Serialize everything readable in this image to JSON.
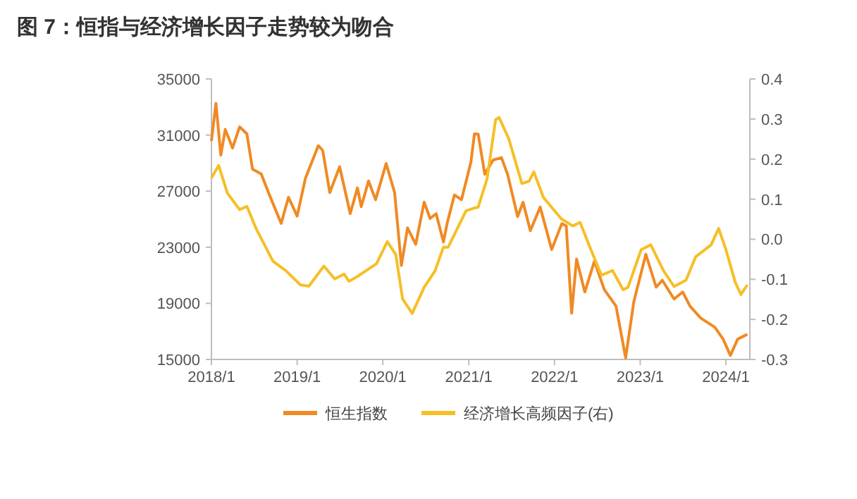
{
  "chart_data": {
    "type": "line",
    "title": "图 7：恒指与经济增长因子走势较为吻合",
    "legend": "bottom",
    "xlim": [
      "2018-01-01",
      "2024-04-12"
    ],
    "xticks": [
      {
        "value": "2018-01",
        "label": "2018/1"
      },
      {
        "value": "2019-01",
        "label": "2019/1"
      },
      {
        "value": "2020-01",
        "label": "2020/1"
      },
      {
        "value": "2021-01",
        "label": "2021/1"
      },
      {
        "value": "2022-01",
        "label": "2022/1"
      },
      {
        "value": "2023-01",
        "label": "2023/1"
      },
      {
        "value": "2024-01",
        "label": "2024/1"
      }
    ],
    "ylim": [
      15000,
      35000
    ],
    "yticks": [
      15000,
      19000,
      23000,
      27000,
      31000,
      35000
    ],
    "y2lim": [
      -0.3,
      0.4
    ],
    "y2ticks": [
      -0.3,
      -0.2,
      -0.1,
      {
        "value": 0,
        "label": "0.0"
      },
      0.1,
      0.2,
      0.3,
      0.4
    ],
    "series": [
      {
        "name": "恒生指数",
        "color": "#f08a24",
        "x": [
          "2018-01-01",
          "2018-01-20",
          "2018-02-10",
          "2018-03-01",
          "2018-04-01",
          "2018-05-01",
          "2018-06-01",
          "2018-06-25",
          "2018-08-01",
          "2018-09-01",
          "2018-10-25",
          "2018-11-25",
          "2019-01-01",
          "2019-02-05",
          "2019-04-01",
          "2019-04-20",
          "2019-05-20",
          "2019-07-01",
          "2019-08-15",
          "2019-09-15",
          "2019-10-01",
          "2019-11-01",
          "2019-12-01",
          "2020-01-15",
          "2020-02-20",
          "2020-03-20",
          "2020-04-15",
          "2020-05-20",
          "2020-06-25",
          "2020-07-20",
          "2020-08-15",
          "2020-09-15",
          "2020-10-01",
          "2020-11-01",
          "2020-12-01",
          "2021-01-10",
          "2021-01-25",
          "2021-02-10",
          "2021-03-10",
          "2021-04-15",
          "2021-05-20",
          "2021-06-15",
          "2021-07-28",
          "2021-08-20",
          "2021-09-20",
          "2021-11-01",
          "2021-12-20",
          "2022-02-01",
          "2022-02-20",
          "2022-03-15",
          "2022-04-05",
          "2022-05-10",
          "2022-06-20",
          "2022-08-01",
          "2022-09-20",
          "2022-10-31",
          "2022-12-05",
          "2023-01-25",
          "2023-03-10",
          "2023-04-05",
          "2023-05-25",
          "2023-07-01",
          "2023-08-01",
          "2023-09-15",
          "2023-11-15",
          "2023-12-20",
          "2024-01-20",
          "2024-02-20",
          "2024-04-01"
        ],
        "values": [
          30580,
          33260,
          29570,
          31400,
          30080,
          31580,
          31080,
          28570,
          28230,
          26900,
          24700,
          26560,
          25220,
          27900,
          30240,
          29900,
          26900,
          28740,
          25400,
          27230,
          25890,
          27730,
          26390,
          28970,
          26900,
          21700,
          24380,
          23210,
          26220,
          25050,
          25390,
          23380,
          24720,
          26730,
          26390,
          29070,
          31080,
          31070,
          28210,
          29220,
          29390,
          28210,
          25190,
          26200,
          24180,
          25860,
          22840,
          24680,
          24520,
          18300,
          22160,
          19810,
          22000,
          19980,
          18800,
          15110,
          19140,
          22500,
          20150,
          20650,
          19310,
          19810,
          18800,
          17960,
          17290,
          16450,
          15280,
          16450,
          16790
        ]
      },
      {
        "name": "经济增长高频因子(右)",
        "color": "#f6bf26",
        "axis": "y2",
        "x": [
          "2018-01-01",
          "2018-02-01",
          "2018-03-10",
          "2018-05-01",
          "2018-06-01",
          "2018-07-10",
          "2018-09-20",
          "2018-11-15",
          "2019-01-15",
          "2019-02-20",
          "2019-04-25",
          "2019-06-10",
          "2019-07-20",
          "2019-08-10",
          "2019-09-20",
          "2019-12-05",
          "2020-01-20",
          "2020-02-25",
          "2020-03-25",
          "2020-05-05",
          "2020-06-25",
          "2020-08-10",
          "2020-09-15",
          "2020-10-05",
          "2020-12-20",
          "2021-01-25",
          "2021-02-10",
          "2021-03-20",
          "2021-04-25",
          "2021-05-10",
          "2021-06-20",
          "2021-08-15",
          "2021-09-15",
          "2021-10-05",
          "2021-11-15",
          "2022-01-30",
          "2022-03-20",
          "2022-04-20",
          "2022-06-05",
          "2022-07-20",
          "2022-09-05",
          "2022-10-20",
          "2022-11-10",
          "2023-01-05",
          "2023-02-15",
          "2023-04-10",
          "2023-05-25",
          "2023-07-15",
          "2023-08-25",
          "2023-10-30",
          "2023-12-01",
          "2024-01-01",
          "2024-02-10",
          "2024-03-05",
          "2024-04-01"
        ],
        "values": [
          0.153,
          0.184,
          0.115,
          0.074,
          0.082,
          0.027,
          -0.055,
          -0.079,
          -0.114,
          -0.117,
          -0.067,
          -0.099,
          -0.087,
          -0.105,
          -0.091,
          -0.061,
          -0.006,
          -0.038,
          -0.149,
          -0.185,
          -0.12,
          -0.079,
          -0.02,
          -0.02,
          0.071,
          0.078,
          0.08,
          0.151,
          0.298,
          0.304,
          0.251,
          0.139,
          0.145,
          0.168,
          0.104,
          0.051,
          0.033,
          0.042,
          -0.026,
          -0.09,
          -0.078,
          -0.126,
          -0.12,
          -0.026,
          -0.014,
          -0.078,
          -0.118,
          -0.102,
          -0.044,
          -0.014,
          0.027,
          -0.026,
          -0.108,
          -0.138,
          -0.114
        ]
      }
    ]
  }
}
